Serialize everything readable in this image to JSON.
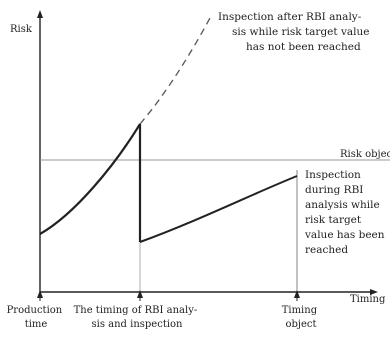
{
  "axes": {
    "y_label": "Risk",
    "x_label": "Timing"
  },
  "reference_line": {
    "label": "Risk object"
  },
  "annotations": {
    "dashed_branch": [
      "Inspection after RBI analy-",
      "sis while risk target value",
      "has not been reached"
    ],
    "target_reached": [
      "Inspection",
      "during RBI",
      "analysis while",
      "risk target",
      "value has been",
      "reached"
    ]
  },
  "x_ticks": {
    "production": [
      "Production",
      "time"
    ],
    "rbi_timing": [
      "The timing of RBI analy-",
      "sis and inspection"
    ],
    "timing_object": [
      "Timing",
      "object"
    ]
  },
  "colors": {
    "ink": "#222222",
    "reference_line": "#999999",
    "dashed_curve": "#555555"
  }
}
